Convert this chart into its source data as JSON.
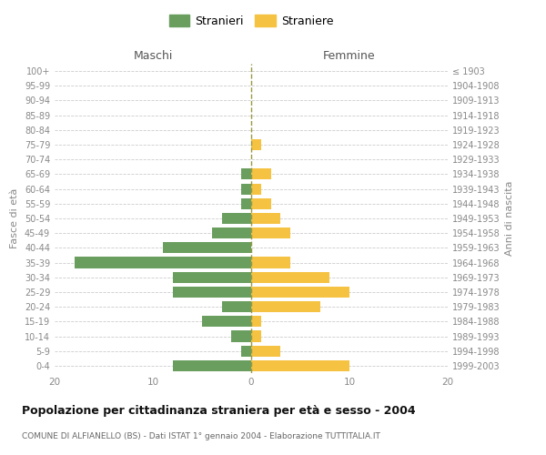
{
  "age_groups": [
    "0-4",
    "5-9",
    "10-14",
    "15-19",
    "20-24",
    "25-29",
    "30-34",
    "35-39",
    "40-44",
    "45-49",
    "50-54",
    "55-59",
    "60-64",
    "65-69",
    "70-74",
    "75-79",
    "80-84",
    "85-89",
    "90-94",
    "95-99",
    "100+"
  ],
  "birth_years": [
    "1999-2003",
    "1994-1998",
    "1989-1993",
    "1984-1988",
    "1979-1983",
    "1974-1978",
    "1969-1973",
    "1964-1968",
    "1959-1963",
    "1954-1958",
    "1949-1953",
    "1944-1948",
    "1939-1943",
    "1934-1938",
    "1929-1933",
    "1924-1928",
    "1919-1923",
    "1914-1918",
    "1909-1913",
    "1904-1908",
    "≤ 1903"
  ],
  "males": [
    8,
    1,
    2,
    5,
    3,
    8,
    8,
    18,
    9,
    4,
    3,
    1,
    1,
    1,
    0,
    0,
    0,
    0,
    0,
    0,
    0
  ],
  "females": [
    10,
    3,
    1,
    1,
    7,
    10,
    8,
    4,
    0,
    4,
    3,
    2,
    1,
    2,
    0,
    1,
    0,
    0,
    0,
    0,
    0
  ],
  "male_color": "#6a9e5e",
  "female_color": "#f5c242",
  "xlim": 20,
  "title": "Popolazione per cittadinanza straniera per età e sesso - 2004",
  "subtitle": "COMUNE DI ALFIANELLO (BS) - Dati ISTAT 1° gennaio 2004 - Elaborazione TUTTITALIA.IT",
  "legend_males": "Stranieri",
  "legend_females": "Straniere",
  "xlabel_left": "Maschi",
  "xlabel_right": "Femmine",
  "ylabel_left": "Fasce di età",
  "ylabel_right": "Anni di nascita",
  "background_color": "#ffffff",
  "grid_color": "#cccccc"
}
